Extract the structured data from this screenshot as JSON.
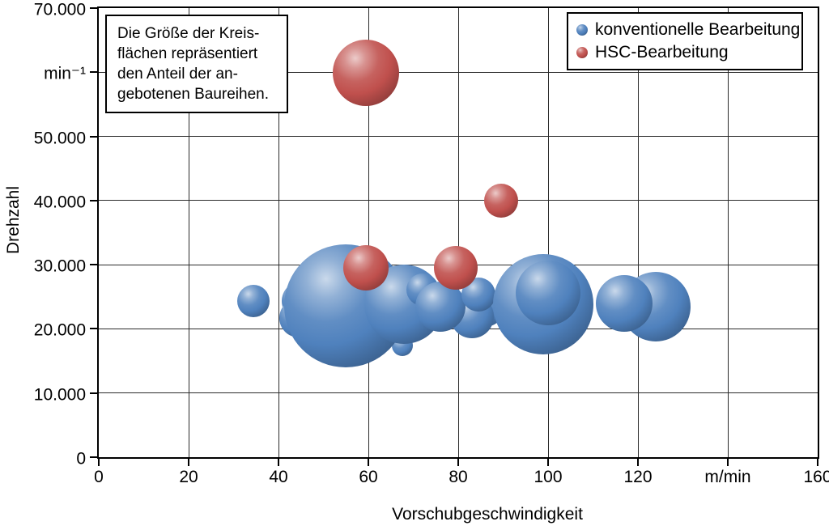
{
  "annotation_box": {
    "lines": [
      "Die Größe der Kreis-",
      "flächen repräsentiert",
      "den Anteil der an-",
      "gebotenen Baureihen."
    ]
  },
  "legend": {
    "position": "top-right",
    "items": [
      {
        "label": "konventionelle Bearbeitung",
        "color": "#4F81BD"
      },
      {
        "label": "HSC-Bearbeitung",
        "color": "#C0504D"
      }
    ]
  },
  "chart_data": {
    "type": "scatter",
    "variant": "bubble",
    "xlabel": "Vorschubgeschwindigkeit",
    "ylabel": "Drehzahl",
    "x_unit": "m/min",
    "y_unit": "min⁻¹",
    "xlim": [
      0,
      160
    ],
    "ylim": [
      0,
      70000
    ],
    "grid": true,
    "x_ticks": [
      {
        "value": 0,
        "label": "0"
      },
      {
        "value": 20,
        "label": "20"
      },
      {
        "value": 40,
        "label": "40"
      },
      {
        "value": 60,
        "label": "60"
      },
      {
        "value": 80,
        "label": "80"
      },
      {
        "value": 100,
        "label": "100"
      },
      {
        "value": 120,
        "label": "120"
      },
      {
        "value": 140,
        "label": "m/min"
      },
      {
        "value": 160,
        "label": "160"
      }
    ],
    "y_ticks": [
      {
        "value": 0,
        "label": "0"
      },
      {
        "value": 10000,
        "label": "10.000"
      },
      {
        "value": 20000,
        "label": "20.000"
      },
      {
        "value": 30000,
        "label": "30.000"
      },
      {
        "value": 40000,
        "label": "40.000"
      },
      {
        "value": 50000,
        "label": "50.000"
      },
      {
        "value": 60000,
        "label": "min⁻¹"
      },
      {
        "value": 70000,
        "label": "70.000"
      }
    ],
    "size_semantics": "Kreisflächen repräsentieren den Anteil der angebotenen Baureihen (r = Bildschirmpixel)",
    "series": [
      {
        "name": "konventionelle Bearbeitung",
        "key": "konventionell",
        "color": "#4F81BD",
        "points": [
          {
            "x": 34.5,
            "y": 24300,
            "r": 20
          },
          {
            "x": 45,
            "y": 24400,
            "r": 24
          },
          {
            "x": 44.5,
            "y": 21700,
            "r": 24
          },
          {
            "x": 67.5,
            "y": 17400,
            "r": 13
          },
          {
            "x": 55,
            "y": 23600,
            "r": 76
          },
          {
            "x": 68,
            "y": 23900,
            "r": 49
          },
          {
            "x": 72,
            "y": 26100,
            "r": 20
          },
          {
            "x": 86,
            "y": 23300,
            "r": 24
          },
          {
            "x": 83,
            "y": 21900,
            "r": 27
          },
          {
            "x": 76,
            "y": 23500,
            "r": 31
          },
          {
            "x": 84.5,
            "y": 25400,
            "r": 21
          },
          {
            "x": 99,
            "y": 23800,
            "r": 62
          },
          {
            "x": 100,
            "y": 25600,
            "r": 40
          },
          {
            "x": 124,
            "y": 23500,
            "r": 43
          },
          {
            "x": 117,
            "y": 24000,
            "r": 35
          }
        ]
      },
      {
        "name": "HSC-Bearbeitung",
        "key": "hsc",
        "color": "#C0504D",
        "points": [
          {
            "x": 59.5,
            "y": 59900,
            "r": 41
          },
          {
            "x": 89.5,
            "y": 40000,
            "r": 21
          },
          {
            "x": 59.5,
            "y": 29500,
            "r": 28
          },
          {
            "x": 79.5,
            "y": 29500,
            "r": 27
          }
        ]
      }
    ]
  }
}
